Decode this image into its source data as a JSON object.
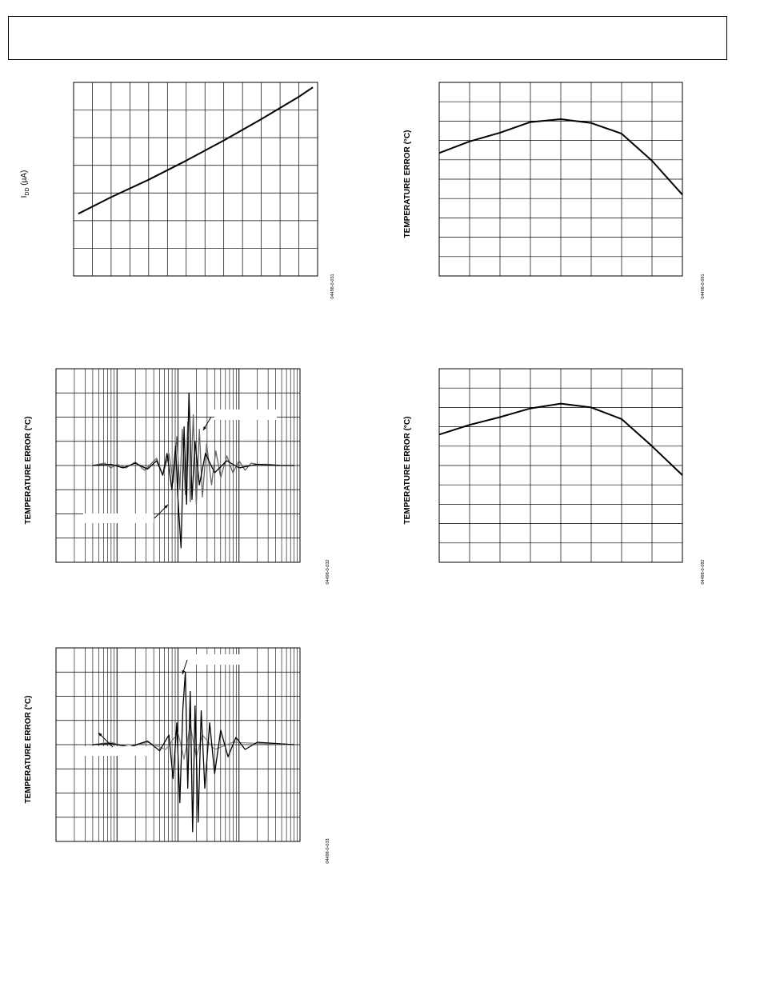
{
  "page": {
    "header_text": ""
  },
  "chart_data": [
    {
      "type": "line",
      "panel": "top-left",
      "ylabel_main": "I",
      "ylabel_sub": "DD",
      "ylabel_rest": " (µA)",
      "xscale": "linear",
      "grid": true,
      "grid_divisions": {
        "x": 13,
        "y": 7
      },
      "xlim": [
        0,
        13
      ],
      "ylim": [
        0,
        7
      ],
      "series": [
        {
          "x": [
            0.25,
            2,
            4,
            6,
            8,
            10,
            12,
            12.75
          ],
          "y": [
            2.25,
            2.85,
            3.48,
            4.17,
            4.9,
            5.67,
            6.48,
            6.82
          ],
          "color": "#000000"
        }
      ],
      "figure_id": "04498-0-031"
    },
    {
      "type": "line",
      "panel": "top-right",
      "ylabel": "TEMPERATURE ERROR (°C)",
      "xscale": "linear",
      "grid": true,
      "grid_divisions": {
        "x": 8,
        "y": 10
      },
      "xlim": [
        0,
        8
      ],
      "ylim": [
        0,
        10
      ],
      "series": [
        {
          "x": [
            0,
            1,
            2,
            3,
            4,
            5,
            6,
            7,
            8
          ],
          "y": [
            6.35,
            6.95,
            7.4,
            7.95,
            8.1,
            7.9,
            7.35,
            5.95,
            4.2
          ],
          "color": "#000000"
        }
      ],
      "figure_id": "04498-0-091"
    },
    {
      "type": "line",
      "panel": "middle-left",
      "ylabel": "TEMPERATURE ERROR (°C)",
      "xscale": "log",
      "grid": true,
      "grid_divisions": {
        "y": 8,
        "x_decades": 4
      },
      "xlim": [
        0,
        4
      ],
      "ylim": [
        -4,
        4
      ],
      "series": [
        {
          "name": "",
          "color": "#666666",
          "x": [
            0.6,
            0.8,
            0.9,
            1.0,
            1.15,
            1.3,
            1.45,
            1.65,
            1.75,
            1.85,
            1.92,
            1.98,
            2.03,
            2.07,
            2.12,
            2.16,
            2.2,
            2.25,
            2.3,
            2.35,
            2.4,
            2.47,
            2.55,
            2.62,
            2.7,
            2.8,
            2.9,
            3.0,
            3.1,
            3.2,
            3.3,
            3.5,
            3.7,
            3.9
          ],
          "y": [
            0.0,
            0.1,
            -0.1,
            0.05,
            -0.1,
            0.15,
            -0.2,
            0.3,
            -0.4,
            0.5,
            -0.7,
            1.2,
            -1.0,
            1.5,
            -1.2,
            1.8,
            -1.5,
            2.1,
            -1.6,
            1.5,
            -1.3,
            0.9,
            -0.8,
            0.6,
            -0.5,
            0.4,
            -0.3,
            0.2,
            -0.2,
            0.1,
            0.05,
            0.05,
            0.0,
            0.0
          ]
        },
        {
          "name": "",
          "color": "#000000",
          "x": [
            0.6,
            0.9,
            1.1,
            1.3,
            1.5,
            1.65,
            1.75,
            1.82,
            1.9,
            1.96,
            2.0,
            2.05,
            2.1,
            2.14,
            2.18,
            2.23,
            2.28,
            2.35,
            2.45,
            2.6,
            2.8,
            3.0,
            3.3,
            3.6,
            3.9
          ],
          "y": [
            0.0,
            0.05,
            -0.1,
            0.1,
            -0.15,
            0.2,
            -0.4,
            0.5,
            -1.0,
            0.8,
            -1.4,
            -3.4,
            1.6,
            -1.6,
            3.0,
            -1.4,
            1.0,
            -0.8,
            0.5,
            -0.3,
            0.2,
            -0.1,
            0.05,
            0.0,
            0.0
          ]
        }
      ],
      "figure_id": "04498-0-032"
    },
    {
      "type": "line",
      "panel": "middle-right",
      "ylabel": "TEMPERATURE ERROR (°C)",
      "xscale": "linear",
      "grid": true,
      "grid_divisions": {
        "x": 8,
        "y": 10
      },
      "xlim": [
        0,
        8
      ],
      "ylim": [
        0,
        10
      ],
      "series": [
        {
          "x": [
            0,
            1,
            2,
            3,
            4,
            5,
            6,
            7,
            8
          ],
          "y": [
            6.6,
            7.1,
            7.5,
            7.95,
            8.2,
            8.0,
            7.4,
            6.0,
            4.5
          ],
          "color": "#000000"
        }
      ],
      "figure_id": "04498-0-092"
    },
    {
      "type": "line",
      "panel": "bottom-left",
      "ylabel": "TEMPERATURE ERROR (°C)",
      "xscale": "log",
      "grid": true,
      "grid_divisions": {
        "y": 8,
        "x_decades": 4
      },
      "xlim": [
        0,
        4
      ],
      "ylim": [
        -4,
        4
      ],
      "series": [
        {
          "name": "",
          "color": "#888888",
          "x": [
            0.6,
            0.9,
            1.2,
            1.5,
            1.8,
            2.0,
            2.1,
            2.2,
            2.3,
            2.4,
            2.6,
            2.9,
            3.3,
            3.9
          ],
          "y": [
            0.0,
            0.1,
            -0.1,
            0.1,
            -0.2,
            0.5,
            -0.6,
            0.8,
            -0.5,
            0.4,
            -0.2,
            0.1,
            0.05,
            0.0
          ]
        },
        {
          "name": "",
          "color": "#000000",
          "x": [
            0.6,
            0.9,
            1.2,
            1.5,
            1.7,
            1.85,
            1.92,
            1.98,
            2.03,
            2.08,
            2.12,
            2.16,
            2.2,
            2.24,
            2.28,
            2.33,
            2.38,
            2.44,
            2.52,
            2.6,
            2.7,
            2.82,
            2.95,
            3.1,
            3.3,
            3.6,
            3.9
          ],
          "y": [
            0.0,
            0.05,
            -0.1,
            0.15,
            -0.25,
            0.4,
            -1.4,
            0.9,
            -2.4,
            1.5,
            3.0,
            -1.8,
            2.2,
            -3.6,
            1.6,
            -3.2,
            1.4,
            -1.8,
            0.9,
            -1.2,
            0.6,
            -0.5,
            0.3,
            -0.2,
            0.1,
            0.05,
            0.0
          ]
        }
      ],
      "figure_id": "04498-0-033"
    }
  ]
}
